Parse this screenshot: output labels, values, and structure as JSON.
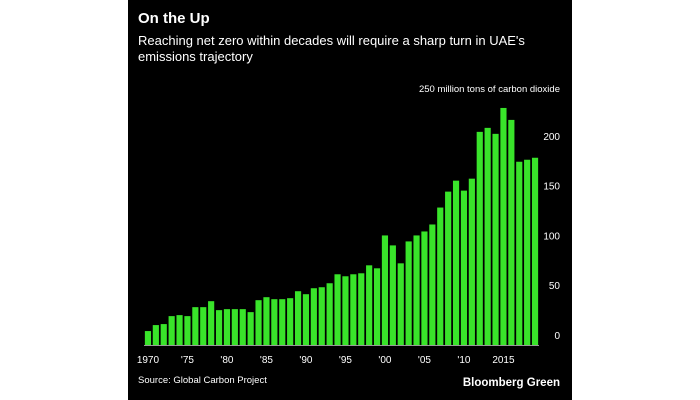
{
  "header": {
    "title": "On the Up",
    "subtitle": "Reaching net zero within decades will require a sharp turn in UAE's emissions trajectory"
  },
  "footer": {
    "source": "Source: Global Carbon Project",
    "brand": "Bloomberg Green"
  },
  "chart_data": {
    "type": "bar",
    "unit_label": "250 million tons of carbon dioxide",
    "bar_color": "#39e42a",
    "background": "#000000",
    "x": [
      1970,
      1971,
      1972,
      1973,
      1974,
      1975,
      1976,
      1977,
      1978,
      1979,
      1980,
      1981,
      1982,
      1983,
      1984,
      1985,
      1986,
      1987,
      1988,
      1989,
      1990,
      1991,
      1992,
      1993,
      1994,
      1995,
      1996,
      1997,
      1998,
      1999,
      2000,
      2001,
      2002,
      2003,
      2004,
      2005,
      2006,
      2007,
      2008,
      2009,
      2010,
      2011,
      2012,
      2013,
      2014,
      2015,
      2016,
      2017,
      2018,
      2019
    ],
    "values": [
      14,
      20,
      21,
      29,
      30,
      29,
      38,
      38,
      44,
      35,
      36,
      36,
      36,
      33,
      45,
      48,
      46,
      46,
      47,
      54,
      51,
      57,
      58,
      62,
      71,
      69,
      71,
      72,
      80,
      77,
      110,
      100,
      82,
      104,
      110,
      114,
      121,
      138,
      154,
      165,
      155,
      167,
      214,
      218,
      212,
      238,
      226,
      184,
      186,
      188
    ],
    "x_tick_labels": [
      {
        "year": 1970,
        "label": "1970"
      },
      {
        "year": 1975,
        "label": "'75"
      },
      {
        "year": 1980,
        "label": "'80"
      },
      {
        "year": 1985,
        "label": "'85"
      },
      {
        "year": 1990,
        "label": "'90"
      },
      {
        "year": 1995,
        "label": "'95"
      },
      {
        "year": 2000,
        "label": "'00"
      },
      {
        "year": 2005,
        "label": "'05"
      },
      {
        "year": 2010,
        "label": "'10"
      },
      {
        "year": 2015,
        "label": "2015"
      }
    ],
    "y_ticks": [
      {
        "value": 0,
        "label": "0"
      },
      {
        "value": 50,
        "label": "50"
      },
      {
        "value": 100,
        "label": "100"
      },
      {
        "value": 150,
        "label": "150"
      },
      {
        "value": 200,
        "label": "200"
      }
    ],
    "ylim": [
      0,
      250
    ],
    "grid": false,
    "xlabel": "",
    "ylabel": ""
  }
}
